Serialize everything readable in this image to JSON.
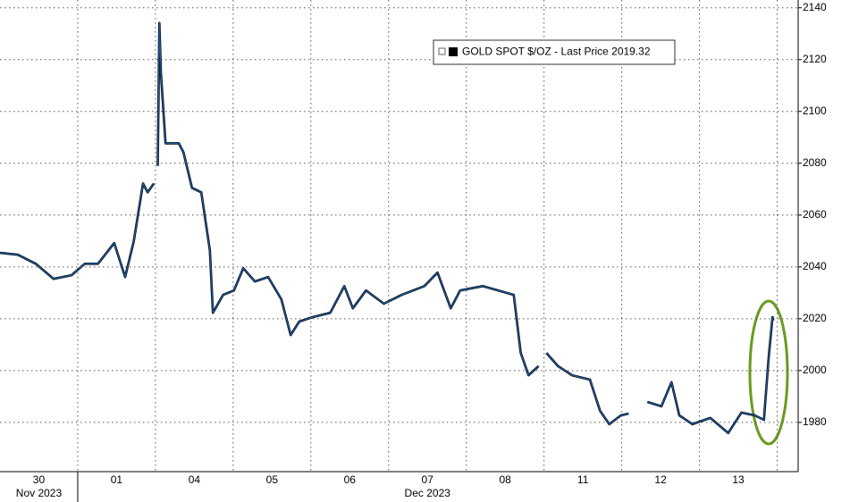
{
  "chart_data": {
    "type": "line",
    "x": [
      0,
      0.23,
      0.46,
      0.69,
      0.92,
      1.09,
      1.26,
      1.47,
      1.61,
      1.72,
      1.84,
      1.9,
      1.98,
      2.0,
      2.03,
      2.05,
      2.07,
      2.13,
      2.3,
      2.36,
      2.47,
      2.59,
      2.7,
      2.74,
      2.87,
      3.01,
      3.13,
      3.28,
      3.45,
      3.62,
      3.74,
      3.85,
      4.02,
      4.25,
      4.43,
      4.54,
      4.71,
      4.94,
      5.17,
      5.46,
      5.63,
      5.8,
      5.92,
      6.21,
      6.61,
      6.7,
      6.8,
      6.93,
      6.98,
      7.03,
      7.18,
      7.36,
      7.59,
      7.72,
      7.84,
      7.99,
      8.09,
      8.2,
      8.33,
      8.51,
      8.64,
      8.74,
      8.91,
      9.14,
      9.37,
      9.54,
      9.71,
      9.83,
      9.89,
      9.94,
      9.95
    ],
    "series": [
      {
        "name": "GOLD SPOT $/OZ - Last Price 2019.32",
        "color": "#1d5a9e",
        "values": [
          2045.4,
          2044.7,
          2041.2,
          2035.4,
          2036.8,
          2041.2,
          2041.2,
          2049.2,
          2036.1,
          2049.8,
          2072.2,
          2068.8,
          2072.2,
          null,
          2079,
          2134.1,
          2115,
          2087.7,
          2087.7,
          2084.3,
          2070.5,
          2068.8,
          2046.4,
          2022.3,
          2029.2,
          2030.9,
          2039.5,
          2034.4,
          2036.1,
          2027.5,
          2013.7,
          2018.9,
          2020.6,
          2022.3,
          2032.6,
          2024.0,
          2030.9,
          2025.8,
          2029.2,
          2032.6,
          2037.8,
          2024.0,
          2030.9,
          2032.6,
          2029.2,
          2006.8,
          1998.2,
          2001.7,
          null,
          2006.8,
          2001.7,
          1998.2,
          1996.5,
          1984.5,
          1979.3,
          1982.7,
          1983.4,
          null,
          1987.9,
          1986.2,
          1995.5,
          1982.7,
          1979.3,
          1981.7,
          1975.9,
          1983.8,
          1982.7,
          1981.0,
          2005.1,
          2020.6,
          2019.32
        ]
      }
    ],
    "last_value": 2019.32,
    "xlim": [
      0,
      10.27
    ],
    "xticks": [
      {
        "value": 0.5,
        "label": "30"
      },
      {
        "value": 1.5,
        "label": "01"
      },
      {
        "value": 2.5,
        "label": "04"
      },
      {
        "value": 3.5,
        "label": "05"
      },
      {
        "value": 4.5,
        "label": "06"
      },
      {
        "value": 5.5,
        "label": "07"
      },
      {
        "value": 6.5,
        "label": "08"
      },
      {
        "value": 7.5,
        "label": "11"
      },
      {
        "value": 8.5,
        "label": "12"
      },
      {
        "value": 9.5,
        "label": "13"
      }
    ],
    "x_groups": [
      {
        "label": "Nov 2023",
        "start": 0,
        "end": 1
      },
      {
        "label": "Dec 2023",
        "start": 1,
        "end": 10
      }
    ],
    "ylim": [
      1961,
      2143
    ],
    "yticks": [
      1980,
      2000,
      2020,
      2040,
      2060,
      2080,
      2100,
      2120,
      2140
    ],
    "grid": true
  }
}
